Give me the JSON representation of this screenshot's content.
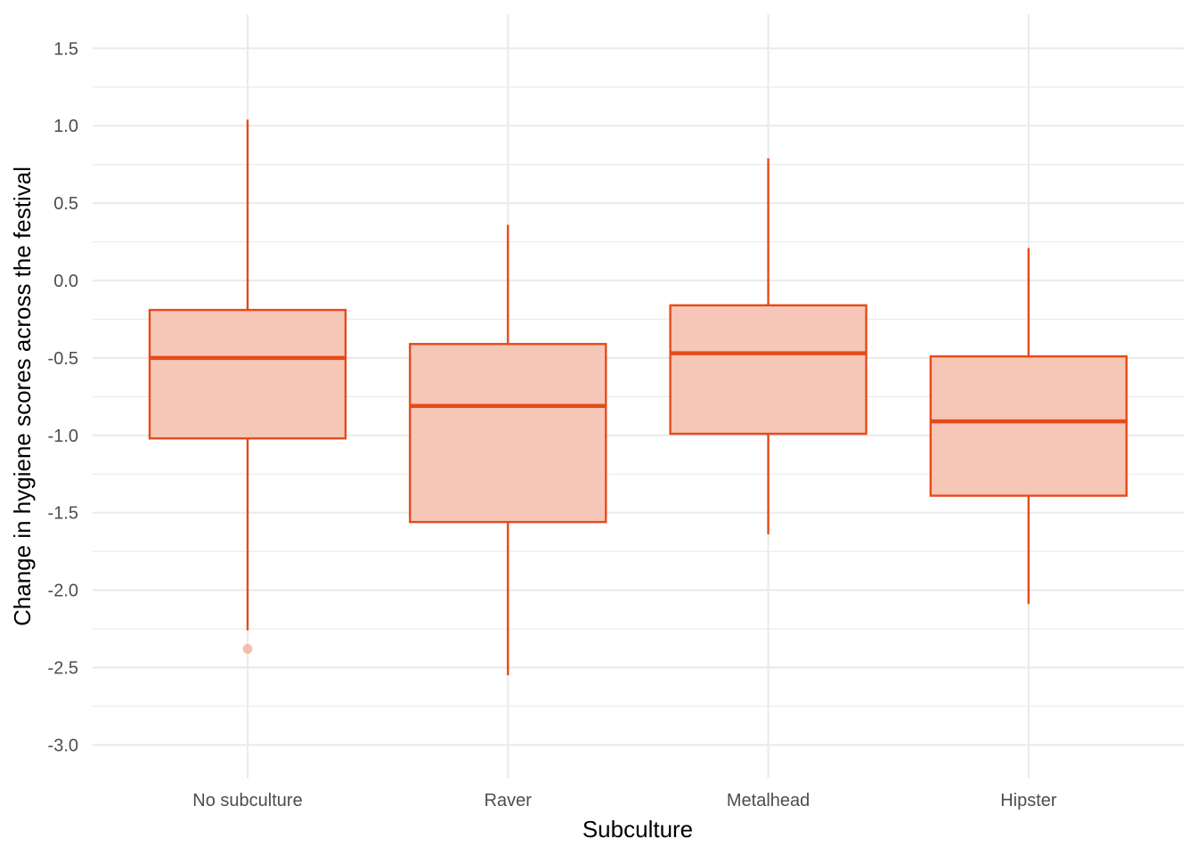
{
  "chart_data": {
    "type": "boxplot",
    "title": "",
    "xlabel": "Subculture",
    "ylabel": "Change in hygiene scores across the festival",
    "ylim": [
      -3.1,
      1.65
    ],
    "y_ticks": [
      "1.5",
      "1.0",
      "0.5",
      "0.0",
      "-0.5",
      "-1.0",
      "-1.5",
      "-2.0",
      "-2.5",
      "-3.0"
    ],
    "y_tick_values": [
      1.5,
      1.0,
      0.5,
      0.0,
      -0.5,
      -1.0,
      -1.5,
      -2.0,
      -2.5,
      -3.0
    ],
    "grid": true,
    "legend": "none",
    "colors": {
      "line": "#E64A19",
      "fill": "#F5C3B3",
      "outlier": "#F0A48C",
      "grid": "#ebebeb",
      "tick_text": "#4d4d4d"
    },
    "categories": [
      "No subculture",
      "Raver",
      "Metalhead",
      "Hipster"
    ],
    "boxes": [
      {
        "category": "No subculture",
        "lower_whisker": -2.26,
        "q1": -1.02,
        "median": -0.5,
        "q3": -0.19,
        "upper_whisker": 1.04,
        "outliers": [
          -2.38
        ]
      },
      {
        "category": "Raver",
        "lower_whisker": -2.55,
        "q1": -1.56,
        "median": -0.81,
        "q3": -0.41,
        "upper_whisker": 0.36,
        "outliers": []
      },
      {
        "category": "Metalhead",
        "lower_whisker": -1.64,
        "q1": -0.99,
        "median": -0.47,
        "q3": -0.16,
        "upper_whisker": 0.79,
        "outliers": []
      },
      {
        "category": "Hipster",
        "lower_whisker": -2.09,
        "q1": -1.39,
        "median": -0.91,
        "q3": -0.49,
        "upper_whisker": 0.21,
        "outliers": []
      }
    ]
  }
}
